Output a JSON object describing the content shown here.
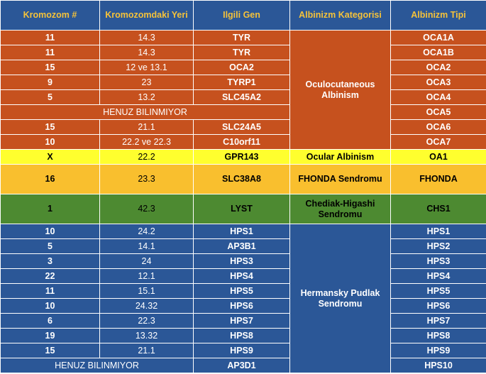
{
  "headers": [
    "Kromozom #",
    "Kromozomdaki Yeri",
    "Ilgili Gen",
    "Albinizm Kategorisi",
    "Albinizm Tipi"
  ],
  "categories": {
    "oca": "Oculocutaneous Albinism",
    "ocular": "Ocular Albinism",
    "fhonda": "FHONDA Sendromu",
    "chediak": "Chediak-Higashi Sendromu",
    "hps": "Hermansky Pudlak Sendromu"
  },
  "unknown_label": "HENUZ BILINMIYOR",
  "rows": [
    {
      "chr": "11",
      "loc": "14.3",
      "gene": "TYR",
      "type": "OCA1A"
    },
    {
      "chr": "11",
      "loc": "14.3",
      "gene": "TYR",
      "type": "OCA1B"
    },
    {
      "chr": "15",
      "loc": "12 ve 13.1",
      "gene": "OCA2",
      "type": "OCA2"
    },
    {
      "chr": "9",
      "loc": "23",
      "gene": "TYRP1",
      "type": "OCA3"
    },
    {
      "chr": "5",
      "loc": "13.2",
      "gene": "SLC45A2",
      "type": "OCA4"
    },
    {
      "chr": "",
      "loc": "",
      "gene": "",
      "type": "OCA5"
    },
    {
      "chr": "15",
      "loc": "21.1",
      "gene": "SLC24A5",
      "type": "OCA6"
    },
    {
      "chr": "10",
      "loc": "22.2 ve 22.3",
      "gene": "C10orf11",
      "type": "OCA7"
    },
    {
      "chr": "X",
      "loc": "22.2",
      "gene": "GPR143",
      "type": "OA1"
    },
    {
      "chr": "16",
      "loc": "23.3",
      "gene": "SLC38A8",
      "type": "FHONDA"
    },
    {
      "chr": "1",
      "loc": "42.3",
      "gene": "LYST",
      "type": "CHS1"
    },
    {
      "chr": "10",
      "loc": "24.2",
      "gene": "HPS1",
      "type": "HPS1"
    },
    {
      "chr": "5",
      "loc": "14.1",
      "gene": "AP3B1",
      "type": "HPS2"
    },
    {
      "chr": "3",
      "loc": "24",
      "gene": "HPS3",
      "type": "HPS3"
    },
    {
      "chr": "22",
      "loc": "12.1",
      "gene": "HPS4",
      "type": "HPS4"
    },
    {
      "chr": "11",
      "loc": "15.1",
      "gene": "HPS5",
      "type": "HPS5"
    },
    {
      "chr": "10",
      "loc": "24.32",
      "gene": "HPS6",
      "type": "HPS6"
    },
    {
      "chr": "6",
      "loc": "22.3",
      "gene": "HPS7",
      "type": "HPS7"
    },
    {
      "chr": "19",
      "loc": "13.32",
      "gene": "HPS8",
      "type": "HPS8"
    },
    {
      "chr": "15",
      "loc": "21.1",
      "gene": "HPS9",
      "type": "HPS9"
    },
    {
      "chr": "",
      "loc": "",
      "gene": "AP3D1",
      "type": "HPS10"
    }
  ]
}
